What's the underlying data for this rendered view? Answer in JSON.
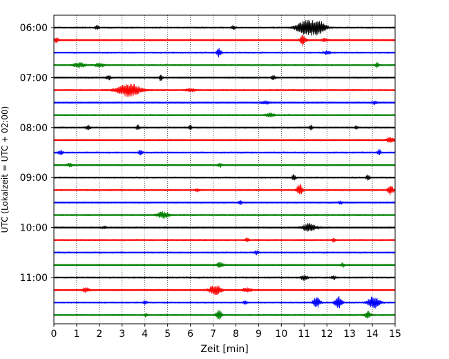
{
  "chart_data": {
    "type": "line",
    "title": "",
    "xlabel": "Zeit  [min]",
    "ylabel": "UTC (Lokalzeit = UTC + 02:00)",
    "xlim": [
      0,
      15
    ],
    "x_ticks": [
      0,
      1,
      2,
      3,
      4,
      5,
      6,
      7,
      8,
      9,
      10,
      11,
      12,
      13,
      14,
      15
    ],
    "x_tick_labels": [
      "0",
      "1",
      "2",
      "3",
      "4",
      "5",
      "6",
      "7",
      "8",
      "9",
      "10",
      "11",
      "12",
      "13",
      "14",
      "15"
    ],
    "y_tick_labels": [
      {
        "row": 0,
        "label": "06:00"
      },
      {
        "row": 4,
        "label": "07:00"
      },
      {
        "row": 8,
        "label": "08:00"
      },
      {
        "row": 12,
        "label": "09:00"
      },
      {
        "row": 16,
        "label": "10:00"
      },
      {
        "row": 20,
        "label": "11:00"
      }
    ],
    "vertical_grid": "dotted",
    "trace_colors": [
      "#000000",
      "#ff0000",
      "#0000ff",
      "#008000"
    ],
    "traces": [
      {
        "start": "06:00",
        "color": "#000000",
        "events": [
          {
            "t": 11.0,
            "amp": 1.0,
            "dur": 0.35
          },
          {
            "t": 11.65,
            "amp": 1.0,
            "dur": 0.3
          },
          {
            "t": 11.3,
            "amp": 0.6,
            "dur": 0.2
          },
          {
            "t": 1.9,
            "amp": 0.25,
            "dur": 0.1
          },
          {
            "t": 7.9,
            "amp": 0.25,
            "dur": 0.1
          }
        ]
      },
      {
        "start": "06:15",
        "color": "#ff0000",
        "events": [
          {
            "t": 0.1,
            "amp": 0.4,
            "dur": 0.1
          },
          {
            "t": 10.95,
            "amp": 0.8,
            "dur": 0.12
          },
          {
            "t": 11.9,
            "amp": 0.2,
            "dur": 0.15
          }
        ]
      },
      {
        "start": "06:30",
        "color": "#0000ff",
        "events": [
          {
            "t": 7.25,
            "amp": 0.6,
            "dur": 0.1
          },
          {
            "t": 12.0,
            "amp": 0.25,
            "dur": 0.15
          }
        ]
      },
      {
        "start": "06:45",
        "color": "#008000",
        "events": [
          {
            "t": 1.1,
            "amp": 0.4,
            "dur": 0.25
          },
          {
            "t": 2.0,
            "amp": 0.3,
            "dur": 0.2
          },
          {
            "t": 14.2,
            "amp": 0.35,
            "dur": 0.1
          }
        ]
      },
      {
        "start": "07:00",
        "color": "#000000",
        "events": [
          {
            "t": 2.4,
            "amp": 0.3,
            "dur": 0.1
          },
          {
            "t": 4.7,
            "amp": 0.45,
            "dur": 0.08
          },
          {
            "t": 9.65,
            "amp": 0.45,
            "dur": 0.08
          }
        ]
      },
      {
        "start": "07:15",
        "color": "#ff0000",
        "events": [
          {
            "t": 3.3,
            "amp": 1.0,
            "dur": 0.5
          },
          {
            "t": 6.0,
            "amp": 0.2,
            "dur": 0.2
          }
        ]
      },
      {
        "start": "07:30",
        "color": "#0000ff",
        "events": [
          {
            "t": 9.3,
            "amp": 0.2,
            "dur": 0.2
          },
          {
            "t": 14.1,
            "amp": 0.3,
            "dur": 0.1
          }
        ]
      },
      {
        "start": "07:45",
        "color": "#008000",
        "events": [
          {
            "t": 9.5,
            "amp": 0.25,
            "dur": 0.2
          }
        ]
      },
      {
        "start": "08:00",
        "color": "#000000",
        "events": [
          {
            "t": 1.5,
            "amp": 0.35,
            "dur": 0.1
          },
          {
            "t": 3.7,
            "amp": 0.35,
            "dur": 0.08
          },
          {
            "t": 6.0,
            "amp": 0.3,
            "dur": 0.08
          },
          {
            "t": 11.3,
            "amp": 0.35,
            "dur": 0.08
          },
          {
            "t": 13.3,
            "amp": 0.25,
            "dur": 0.08
          }
        ]
      },
      {
        "start": "08:15",
        "color": "#ff0000",
        "events": [
          {
            "t": 14.8,
            "amp": 0.4,
            "dur": 0.15
          }
        ]
      },
      {
        "start": "08:30",
        "color": "#0000ff",
        "events": [
          {
            "t": 0.3,
            "amp": 0.35,
            "dur": 0.1
          },
          {
            "t": 3.8,
            "amp": 0.3,
            "dur": 0.1
          },
          {
            "t": 14.3,
            "amp": 0.45,
            "dur": 0.08
          }
        ]
      },
      {
        "start": "08:45",
        "color": "#008000",
        "events": [
          {
            "t": 0.7,
            "amp": 0.3,
            "dur": 0.1
          },
          {
            "t": 7.3,
            "amp": 0.3,
            "dur": 0.1
          }
        ]
      },
      {
        "start": "09:00",
        "color": "#000000",
        "events": [
          {
            "t": 10.55,
            "amp": 0.45,
            "dur": 0.08
          },
          {
            "t": 13.8,
            "amp": 0.35,
            "dur": 0.08
          }
        ]
      },
      {
        "start": "09:15",
        "color": "#ff0000",
        "events": [
          {
            "t": 10.8,
            "amp": 0.85,
            "dur": 0.12
          },
          {
            "t": 14.8,
            "amp": 0.7,
            "dur": 0.12
          },
          {
            "t": 6.3,
            "amp": 0.2,
            "dur": 0.1
          }
        ]
      },
      {
        "start": "09:30",
        "color": "#0000ff",
        "events": [
          {
            "t": 8.2,
            "amp": 0.3,
            "dur": 0.08
          },
          {
            "t": 12.6,
            "amp": 0.2,
            "dur": 0.1
          }
        ]
      },
      {
        "start": "09:45",
        "color": "#008000",
        "events": [
          {
            "t": 4.8,
            "amp": 0.5,
            "dur": 0.25
          }
        ]
      },
      {
        "start": "10:00",
        "color": "#000000",
        "events": [
          {
            "t": 11.25,
            "amp": 0.6,
            "dur": 0.3
          },
          {
            "t": 2.2,
            "amp": 0.2,
            "dur": 0.1
          }
        ]
      },
      {
        "start": "10:15",
        "color": "#ff0000",
        "events": [
          {
            "t": 8.5,
            "amp": 0.3,
            "dur": 0.08
          },
          {
            "t": 12.3,
            "amp": 0.3,
            "dur": 0.08
          }
        ]
      },
      {
        "start": "10:30",
        "color": "#0000ff",
        "events": [
          {
            "t": 8.9,
            "amp": 0.25,
            "dur": 0.1
          }
        ]
      },
      {
        "start": "10:45",
        "color": "#008000",
        "events": [
          {
            "t": 7.3,
            "amp": 0.35,
            "dur": 0.15
          },
          {
            "t": 12.7,
            "amp": 0.3,
            "dur": 0.1
          }
        ]
      },
      {
        "start": "11:00",
        "color": "#000000",
        "events": [
          {
            "t": 11.0,
            "amp": 0.35,
            "dur": 0.15
          },
          {
            "t": 12.3,
            "amp": 0.25,
            "dur": 0.1
          }
        ]
      },
      {
        "start": "11:15",
        "color": "#ff0000",
        "events": [
          {
            "t": 1.4,
            "amp": 0.35,
            "dur": 0.15
          },
          {
            "t": 7.1,
            "amp": 0.8,
            "dur": 0.25
          },
          {
            "t": 8.5,
            "amp": 0.3,
            "dur": 0.2
          }
        ]
      },
      {
        "start": "11:30",
        "color": "#0000ff",
        "events": [
          {
            "t": 11.55,
            "amp": 0.8,
            "dur": 0.15
          },
          {
            "t": 12.5,
            "amp": 1.0,
            "dur": 0.15
          },
          {
            "t": 14.05,
            "amp": 0.9,
            "dur": 0.25
          },
          {
            "t": 4.0,
            "amp": 0.25,
            "dur": 0.08
          },
          {
            "t": 8.4,
            "amp": 0.25,
            "dur": 0.08
          }
        ]
      },
      {
        "start": "11:45",
        "color": "#008000",
        "events": [
          {
            "t": 7.25,
            "amp": 0.75,
            "dur": 0.12
          },
          {
            "t": 13.8,
            "amp": 0.65,
            "dur": 0.12
          },
          {
            "t": 4.05,
            "amp": 0.25,
            "dur": 0.08
          }
        ]
      }
    ]
  }
}
